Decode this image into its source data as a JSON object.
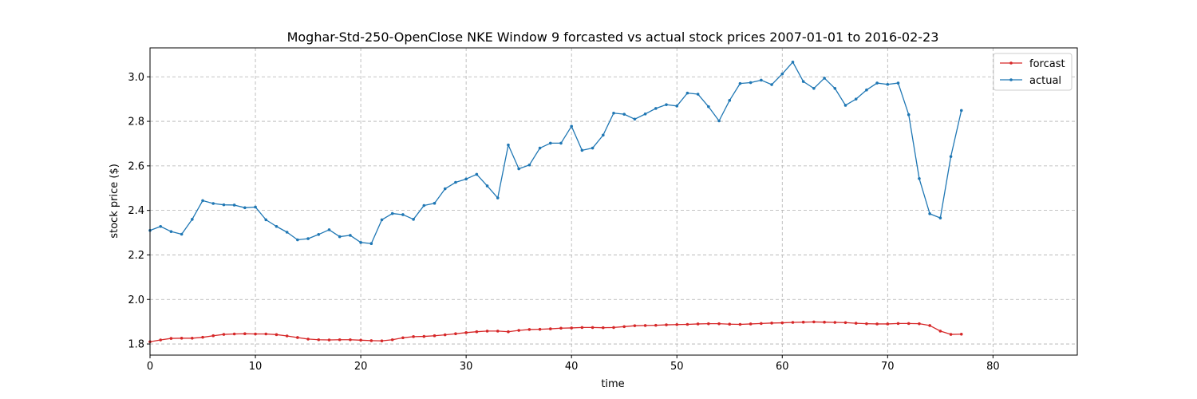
{
  "chart_data": {
    "type": "line",
    "title": "Moghar-Std-250-OpenClose NKE Window 9 forcasted vs actual stock prices 2007-01-01 to 2016-02-23",
    "xlabel": "time",
    "ylabel": "stock price ($)",
    "xlim": [
      0,
      88
    ],
    "ylim": [
      1.75,
      3.13
    ],
    "xticks": [
      0,
      10,
      20,
      30,
      40,
      50,
      60,
      70,
      80
    ],
    "yticks": [
      1.8,
      2.0,
      2.2,
      2.4,
      2.6,
      2.8,
      3.0
    ],
    "grid": true,
    "legend_position": "top-right",
    "series": [
      {
        "name": "forcast",
        "color": "#d62728",
        "values": [
          1.81,
          1.818,
          1.825,
          1.826,
          1.826,
          1.83,
          1.837,
          1.843,
          1.845,
          1.846,
          1.845,
          1.845,
          1.842,
          1.836,
          1.829,
          1.822,
          1.819,
          1.818,
          1.819,
          1.819,
          1.817,
          1.815,
          1.814,
          1.819,
          1.828,
          1.833,
          1.834,
          1.837,
          1.841,
          1.846,
          1.851,
          1.855,
          1.858,
          1.858,
          1.855,
          1.861,
          1.865,
          1.866,
          1.868,
          1.871,
          1.872,
          1.874,
          1.874,
          1.873,
          1.874,
          1.878,
          1.882,
          1.883,
          1.884,
          1.886,
          1.887,
          1.888,
          1.89,
          1.891,
          1.891,
          1.889,
          1.888,
          1.89,
          1.892,
          1.894,
          1.895,
          1.897,
          1.898,
          1.899,
          1.898,
          1.897,
          1.896,
          1.893,
          1.891,
          1.89,
          1.89,
          1.892,
          1.892,
          1.891,
          1.883,
          1.858,
          1.843,
          1.844
        ]
      },
      {
        "name": "actual",
        "color": "#1f77b4",
        "values": [
          2.31,
          2.328,
          2.305,
          2.293,
          2.36,
          2.444,
          2.431,
          2.425,
          2.424,
          2.412,
          2.415,
          2.358,
          2.328,
          2.302,
          2.268,
          2.273,
          2.292,
          2.313,
          2.282,
          2.288,
          2.256,
          2.251,
          2.358,
          2.386,
          2.381,
          2.36,
          2.422,
          2.432,
          2.497,
          2.526,
          2.541,
          2.562,
          2.51,
          2.456,
          2.694,
          2.587,
          2.604,
          2.68,
          2.702,
          2.702,
          2.778,
          2.67,
          2.68,
          2.738,
          2.837,
          2.832,
          2.81,
          2.833,
          2.858,
          2.875,
          2.869,
          2.927,
          2.922,
          2.866,
          2.802,
          2.894,
          2.97,
          2.974,
          2.985,
          2.965,
          3.013,
          3.066,
          2.979,
          2.948,
          2.994,
          2.948,
          2.872,
          2.9,
          2.941,
          2.972,
          2.966,
          2.972,
          2.83,
          2.543,
          2.385,
          2.366,
          2.642,
          2.849
        ]
      }
    ]
  }
}
